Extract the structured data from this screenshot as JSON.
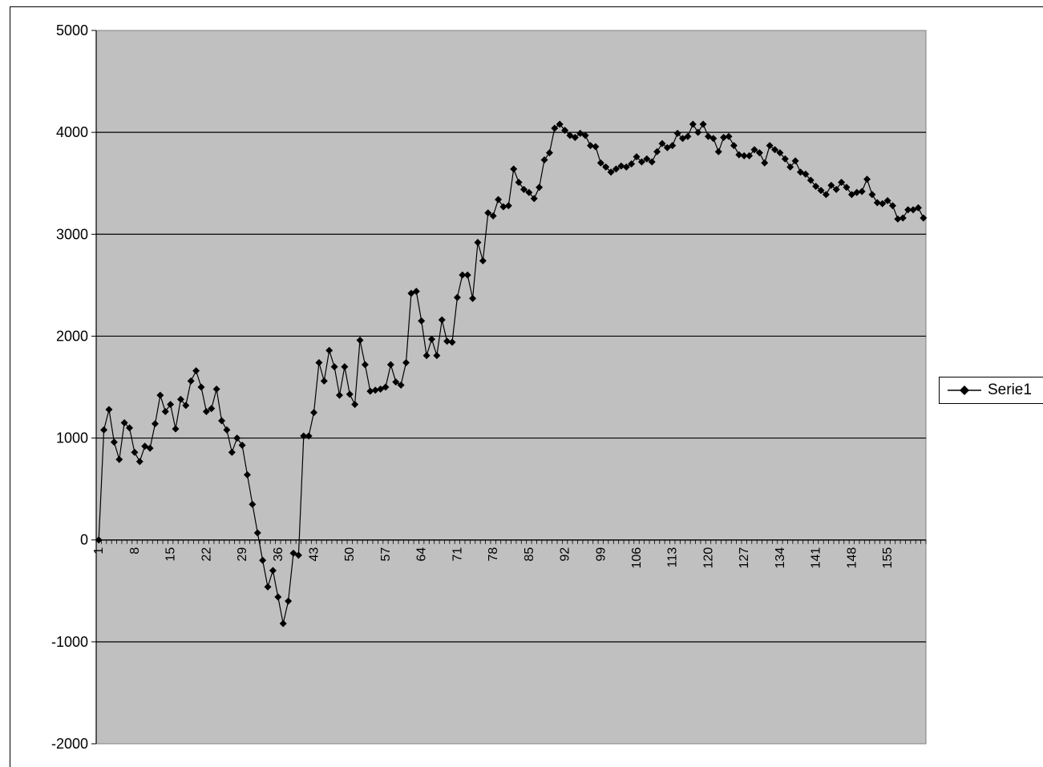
{
  "chart_data": {
    "type": "line",
    "ylim": [
      -2000,
      5000
    ],
    "yticks": [
      -2000,
      -1000,
      0,
      1000,
      2000,
      3000,
      4000,
      5000
    ],
    "grid": "horizontal",
    "plot_background": "#c0c0c0",
    "line_color": "#000000",
    "marker": "diamond",
    "legend_position": "right",
    "x_tick_labels": [
      "1",
      "8",
      "15",
      "22",
      "29",
      "36",
      "43",
      "50",
      "57",
      "64",
      "71",
      "78",
      "85",
      "92",
      "99",
      "106",
      "113",
      "120",
      "127",
      "134",
      "141",
      "148",
      "155"
    ],
    "x_count": 162,
    "series": [
      {
        "name": "Serie1",
        "values": [
          0,
          1080,
          1280,
          960,
          790,
          1150,
          1100,
          860,
          770,
          920,
          900,
          1140,
          1420,
          1260,
          1330,
          1090,
          1380,
          1320,
          1560,
          1660,
          1500,
          1260,
          1290,
          1480,
          1170,
          1080,
          860,
          1000,
          930,
          640,
          350,
          70,
          -200,
          -460,
          -300,
          -560,
          -820,
          -600,
          -130,
          -150,
          1020,
          1020,
          1250,
          1740,
          1560,
          1860,
          1700,
          1420,
          1700,
          1430,
          1330,
          1960,
          1720,
          1460,
          1470,
          1480,
          1500,
          1720,
          1550,
          1520,
          1740,
          2420,
          2440,
          2150,
          1810,
          1970,
          1810,
          2160,
          1950,
          1940,
          2380,
          2600,
          2600,
          2370,
          2920,
          2740,
          3210,
          3180,
          3340,
          3270,
          3280,
          3640,
          3510,
          3440,
          3410,
          3350,
          3460,
          3730,
          3800,
          4040,
          4080,
          4020,
          3970,
          3950,
          3990,
          3970,
          3870,
          3860,
          3700,
          3660,
          3610,
          3640,
          3670,
          3660,
          3690,
          3760,
          3710,
          3740,
          3710,
          3810,
          3890,
          3850,
          3870,
          3990,
          3940,
          3960,
          4080,
          4000,
          4080,
          3960,
          3940,
          3810,
          3950,
          3960,
          3870,
          3780,
          3770,
          3770,
          3830,
          3800,
          3700,
          3870,
          3830,
          3800,
          3740,
          3660,
          3720,
          3610,
          3590,
          3530,
          3470,
          3430,
          3390,
          3480,
          3440,
          3510,
          3460,
          3390,
          3410,
          3420,
          3540,
          3390,
          3310,
          3300,
          3330,
          3280,
          3150,
          3160,
          3240,
          3240,
          3260,
          3160
        ]
      }
    ]
  }
}
